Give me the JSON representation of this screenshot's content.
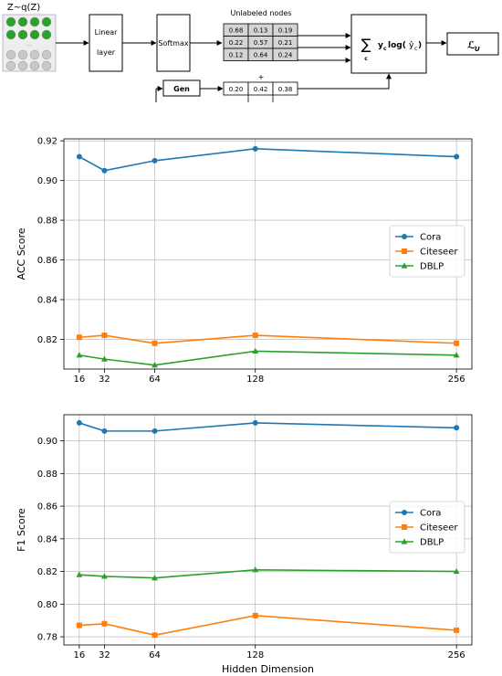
{
  "diagram": {
    "input_label": "Z~q(Z)",
    "linear_label_1": "Linear",
    "linear_label_2": "layer",
    "softmax_label": "Softmax",
    "unlabeled_title": "Unlabeled nodes",
    "matrix": [
      [
        "0.68",
        "0.13",
        "0.19"
      ],
      [
        "0.22",
        "0.57",
        "0.21"
      ],
      [
        "0.12",
        "0.64",
        "0.24"
      ]
    ],
    "plus_sign": "+",
    "gen_label": "Gen",
    "gen_row": [
      "0.20",
      "0.42",
      "0.38"
    ],
    "loss_sum": "∑",
    "loss_sub": "c",
    "loss_expr": "y",
    "loss_expr_sub": "c",
    "loss_log": "log(",
    "loss_yhat": "ŷ",
    "loss_yhat_sub": "c",
    "loss_close": ")",
    "output_L": "ℒ",
    "output_sub": "U",
    "dots": "...",
    "colors": {
      "green": "#2ca02c",
      "grey": "#c8c8c8",
      "cell": "#d4d4d4"
    }
  },
  "chart_data": [
    {
      "type": "line",
      "x": [
        16,
        32,
        64,
        128,
        256
      ],
      "xticklabels": [
        "16",
        "32",
        "64",
        "128",
        "256"
      ],
      "xlabel": "",
      "ylabel": "ACC Score",
      "ylim": [
        0.805,
        0.921
      ],
      "yticks": [
        0.82,
        0.84,
        0.86,
        0.88,
        0.9,
        0.92
      ],
      "yticklabels": [
        "0.82",
        "0.84",
        "0.86",
        "0.88",
        "0.90",
        "0.92"
      ],
      "grid": true,
      "legend": "center-right",
      "series": [
        {
          "name": "Cora",
          "marker": "circle",
          "color": "#1f77b4",
          "values": [
            0.912,
            0.905,
            0.91,
            0.916,
            0.912
          ]
        },
        {
          "name": "Citeseer",
          "marker": "square",
          "color": "#ff7f0e",
          "values": [
            0.821,
            0.822,
            0.818,
            0.822,
            0.818
          ]
        },
        {
          "name": "DBLP",
          "marker": "triangle",
          "color": "#2ca02c",
          "values": [
            0.812,
            0.81,
            0.807,
            0.814,
            0.812
          ]
        }
      ]
    },
    {
      "type": "line",
      "x": [
        16,
        32,
        64,
        128,
        256
      ],
      "xticklabels": [
        "16",
        "32",
        "64",
        "128",
        "256"
      ],
      "xlabel": "Hidden Dimension",
      "ylabel": "F1 Score",
      "ylim": [
        0.775,
        0.916
      ],
      "yticks": [
        0.78,
        0.8,
        0.82,
        0.84,
        0.86,
        0.88,
        0.9
      ],
      "yticklabels": [
        "0.78",
        "0.80",
        "0.82",
        "0.84",
        "0.86",
        "0.88",
        "0.90"
      ],
      "grid": true,
      "legend": "center-right",
      "series": [
        {
          "name": "Cora",
          "marker": "circle",
          "color": "#1f77b4",
          "values": [
            0.911,
            0.906,
            0.906,
            0.911,
            0.908
          ]
        },
        {
          "name": "Citeseer",
          "marker": "square",
          "color": "#ff7f0e",
          "values": [
            0.787,
            0.788,
            0.781,
            0.793,
            0.784
          ]
        },
        {
          "name": "DBLP",
          "marker": "triangle",
          "color": "#2ca02c",
          "values": [
            0.818,
            0.817,
            0.816,
            0.821,
            0.82
          ]
        }
      ]
    }
  ]
}
